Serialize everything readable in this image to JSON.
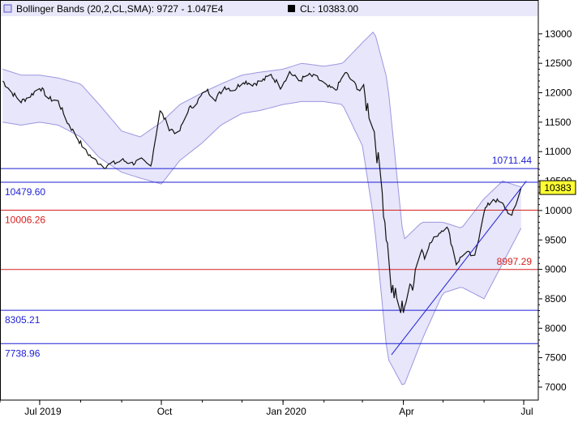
{
  "chart_data": {
    "type": "line",
    "header": {
      "study_label": "Bollinger Bands (20,2,CL,SMA): 9727 - 1.047E4",
      "close_label": "CL: 10383.00"
    },
    "x_ticks": [
      "Jul 2019",
      "Oct",
      "Jan 2020",
      "Apr",
      "Jul"
    ],
    "y_ticks": [
      7000,
      7500,
      8000,
      8500,
      9000,
      9500,
      10000,
      10500,
      11000,
      11500,
      12000,
      12500,
      13000
    ],
    "y_range": [
      6780,
      13300
    ],
    "last_price": {
      "label": "10383",
      "value": 10383
    },
    "series": [
      {
        "name": "close",
        "x": [
          "2019-06-03",
          "2019-06-10",
          "2019-06-17",
          "2019-06-24",
          "2019-07-01",
          "2019-07-08",
          "2019-07-15",
          "2019-07-22",
          "2019-07-29",
          "2019-08-05",
          "2019-08-12",
          "2019-08-19",
          "2019-08-26",
          "2019-09-02",
          "2019-09-09",
          "2019-09-16",
          "2019-09-23",
          "2019-09-30",
          "2019-10-07",
          "2019-10-14",
          "2019-10-21",
          "2019-10-28",
          "2019-11-04",
          "2019-11-11",
          "2019-11-18",
          "2019-11-25",
          "2019-12-02",
          "2019-12-09",
          "2019-12-16",
          "2019-12-23",
          "2019-12-30",
          "2020-01-06",
          "2020-01-13",
          "2020-01-20",
          "2020-01-27",
          "2020-02-03",
          "2020-02-10",
          "2020-02-17",
          "2020-02-24",
          "2020-03-02",
          "2020-03-09",
          "2020-03-16",
          "2020-03-23",
          "2020-03-30",
          "2020-04-06",
          "2020-04-13",
          "2020-04-20",
          "2020-04-27",
          "2020-05-04",
          "2020-05-11",
          "2020-05-18",
          "2020-05-25",
          "2020-06-01",
          "2020-06-08",
          "2020-06-15",
          "2020-06-22",
          "2020-06-29"
        ],
        "y": [
          12200,
          12000,
          11850,
          11950,
          12100,
          11900,
          11850,
          11500,
          11250,
          11000,
          10850,
          10750,
          10800,
          10850,
          10800,
          10850,
          10750,
          11700,
          11400,
          11300,
          11700,
          11850,
          12050,
          11900,
          12100,
          12050,
          12200,
          12150,
          12200,
          12300,
          12100,
          12350,
          12200,
          12300,
          12250,
          12100,
          12050,
          12350,
          12150,
          11950,
          11500,
          10300,
          8700,
          8300,
          8600,
          9300,
          9400,
          9600,
          9750,
          9100,
          9300,
          9200,
          10000,
          10200,
          10100,
          9900,
          10383
        ]
      },
      {
        "name": "upper band",
        "x": [
          "2019-06-03",
          "2019-06-17",
          "2019-07-01",
          "2019-07-15",
          "2019-08-01",
          "2019-08-15",
          "2019-09-01",
          "2019-09-15",
          "2019-10-01",
          "2019-10-15",
          "2019-11-01",
          "2019-11-15",
          "2019-12-01",
          "2019-12-15",
          "2020-01-01",
          "2020-01-15",
          "2020-02-01",
          "2020-02-15",
          "2020-03-01",
          "2020-03-10",
          "2020-03-20",
          "2020-04-01",
          "2020-04-15",
          "2020-05-01",
          "2020-05-15",
          "2020-06-01",
          "2020-06-15",
          "2020-06-29"
        ],
        "y": [
          12400,
          12300,
          12300,
          12250,
          12150,
          11800,
          11350,
          11250,
          11500,
          11800,
          12000,
          12150,
          12300,
          12350,
          12400,
          12500,
          12450,
          12500,
          12850,
          13050,
          12200,
          9500,
          9800,
          9800,
          9700,
          10200,
          10500,
          10400
        ]
      },
      {
        "name": "lower band",
        "x": [
          "2019-06-03",
          "2019-06-17",
          "2019-07-01",
          "2019-07-15",
          "2019-08-01",
          "2019-08-15",
          "2019-09-01",
          "2019-09-15",
          "2019-10-01",
          "2019-10-15",
          "2019-11-01",
          "2019-11-15",
          "2019-12-01",
          "2019-12-15",
          "2020-01-01",
          "2020-01-15",
          "2020-02-01",
          "2020-02-15",
          "2020-03-01",
          "2020-03-10",
          "2020-03-20",
          "2020-04-01",
          "2020-04-15",
          "2020-05-01",
          "2020-05-15",
          "2020-06-01",
          "2020-06-15",
          "2020-06-29"
        ],
        "y": [
          11500,
          11450,
          11500,
          11450,
          11250,
          10900,
          10650,
          10550,
          10450,
          10850,
          11150,
          11450,
          11650,
          11700,
          11800,
          11850,
          11850,
          11800,
          11100,
          9800,
          7500,
          7000,
          7800,
          8600,
          8700,
          8500,
          9100,
          9700
        ]
      }
    ],
    "horizontal_lines": [
      {
        "value": 10711.44,
        "label": "10711.44",
        "color": "#1f1fd6",
        "label_side": "right"
      },
      {
        "value": 10479.6,
        "label": "10479.60",
        "color": "#1f1fd6",
        "label_side": "left"
      },
      {
        "value": 10006.26,
        "label": "10006.26",
        "color": "#d62020",
        "label_side": "left"
      },
      {
        "value": 8997.29,
        "label": "8997.29",
        "color": "#d62020",
        "label_side": "right"
      },
      {
        "value": 8305.21,
        "label": "8305.21",
        "color": "#1f1fd6",
        "label_side": "left"
      },
      {
        "value": 7738.96,
        "label": "7738.96",
        "color": "#1f1fd6",
        "label_side": "left"
      }
    ],
    "trendline": {
      "from": [
        "2020-03-23",
        7550
      ],
      "to": [
        "2020-07-03",
        10500
      ],
      "color": "#1f1fd6"
    },
    "colors": {
      "price": "#111111",
      "band_fill": "#e7e6fa",
      "band_line": "#9b97e0",
      "header_bg": "#e8e8fa",
      "last_price_bg": "#ffff33"
    },
    "grid": false
  }
}
